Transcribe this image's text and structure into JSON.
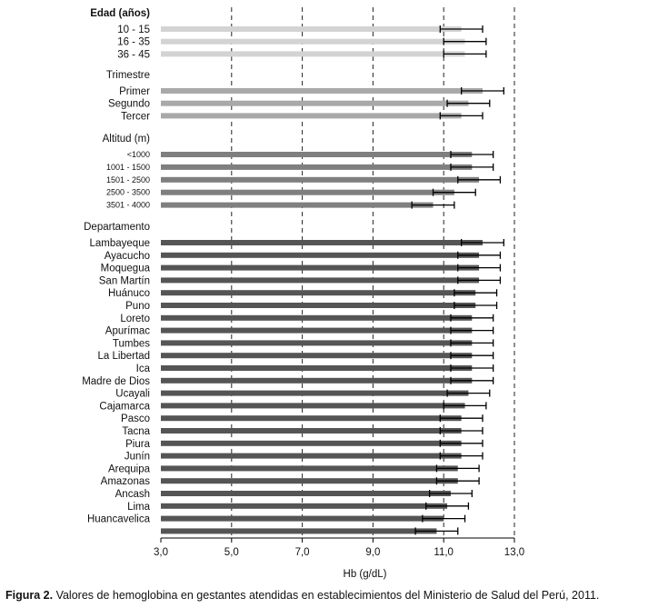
{
  "chart_data": {
    "type": "bar",
    "orientation": "horizontal",
    "xlabel": "Hb (g/dL)",
    "xlim": [
      3.0,
      13.0
    ],
    "xticks": [
      "3,0",
      "5,0",
      "7,0",
      "9,0",
      "11,0",
      "13,0"
    ],
    "gridlines": [
      5.0,
      7.0,
      9.0,
      11.0,
      13.0
    ],
    "grid": "vertical dashed",
    "groups": [
      {
        "header": "Edad (años)",
        "header_bold": true,
        "color": "#d3d3d3",
        "items": [
          {
            "label": "10 - 15",
            "value": 11.5,
            "low": 10.9,
            "high": 12.1
          },
          {
            "label": "16 - 35",
            "value": 11.6,
            "low": 11.0,
            "high": 12.2
          },
          {
            "label": "36 - 45",
            "value": 11.6,
            "low": 11.0,
            "high": 12.2
          }
        ]
      },
      {
        "header": "Trimestre",
        "header_bold": false,
        "color": "#a9a9a9",
        "items": [
          {
            "label": "Primer",
            "value": 12.1,
            "low": 11.5,
            "high": 12.7
          },
          {
            "label": "Segundo",
            "value": 11.7,
            "low": 11.1,
            "high": 12.3
          },
          {
            "label": "Tercer",
            "value": 11.5,
            "low": 10.9,
            "high": 12.1
          }
        ]
      },
      {
        "header": "Altitud (m)",
        "header_bold": false,
        "color": "#7f7f7f",
        "items": [
          {
            "label": "<1000",
            "value": 11.8,
            "low": 11.2,
            "high": 12.4
          },
          {
            "label": "1001 - 1500",
            "value": 11.8,
            "low": 11.2,
            "high": 12.4
          },
          {
            "label": "1501 - 2500",
            "value": 12.0,
            "low": 11.4,
            "high": 12.6
          },
          {
            "label": "2500 - 3500",
            "value": 11.3,
            "low": 10.7,
            "high": 11.9
          },
          {
            "label": "3501 - 4000",
            "value": 10.7,
            "low": 10.1,
            "high": 11.3
          }
        ]
      },
      {
        "header": "Departamento",
        "header_bold": false,
        "color": "#555555",
        "items": [
          {
            "label": "Lambayeque",
            "value": 12.1,
            "low": 11.5,
            "high": 12.7
          },
          {
            "label": "Ayacucho",
            "value": 12.0,
            "low": 11.4,
            "high": 12.6
          },
          {
            "label": "Moquegua",
            "value": 12.0,
            "low": 11.4,
            "high": 12.6
          },
          {
            "label": "San Martín",
            "value": 12.0,
            "low": 11.4,
            "high": 12.6
          },
          {
            "label": "Huánuco",
            "value": 11.9,
            "low": 11.3,
            "high": 12.5
          },
          {
            "label": "Puno",
            "value": 11.9,
            "low": 11.3,
            "high": 12.5
          },
          {
            "label": "Loreto",
            "value": 11.8,
            "low": 11.2,
            "high": 12.4
          },
          {
            "label": "Apurímac",
            "value": 11.8,
            "low": 11.2,
            "high": 12.4
          },
          {
            "label": "Tumbes",
            "value": 11.8,
            "low": 11.2,
            "high": 12.4
          },
          {
            "label": "La Libertad",
            "value": 11.8,
            "low": 11.2,
            "high": 12.4
          },
          {
            "label": "Ica",
            "value": 11.8,
            "low": 11.2,
            "high": 12.4
          },
          {
            "label": "Madre de Dios",
            "value": 11.8,
            "low": 11.2,
            "high": 12.4
          },
          {
            "label": "Ucayali",
            "value": 11.7,
            "low": 11.1,
            "high": 12.3
          },
          {
            "label": "Cajamarca",
            "value": 11.6,
            "low": 11.0,
            "high": 12.2
          },
          {
            "label": "Pasco",
            "value": 11.5,
            "low": 10.9,
            "high": 12.1
          },
          {
            "label": "Tacna",
            "value": 11.5,
            "low": 10.9,
            "high": 12.1
          },
          {
            "label": "Piura",
            "value": 11.5,
            "low": 10.9,
            "high": 12.1
          },
          {
            "label": "Junín",
            "value": 11.5,
            "low": 10.9,
            "high": 12.1
          },
          {
            "label": "Arequipa",
            "value": 11.4,
            "low": 10.8,
            "high": 12.0
          },
          {
            "label": "Amazonas",
            "value": 11.4,
            "low": 10.8,
            "high": 12.0
          },
          {
            "label": "Ancash",
            "value": 11.2,
            "low": 10.6,
            "high": 11.8
          },
          {
            "label": "Lima",
            "value": 11.1,
            "low": 10.5,
            "high": 11.7
          },
          {
            "label": "Huancavelica",
            "value": 11.0,
            "low": 10.4,
            "high": 11.6
          },
          {
            "label": "",
            "value": 10.8,
            "low": 10.2,
            "high": 11.4
          }
        ]
      }
    ]
  },
  "caption": {
    "prefix": "Figura 2.",
    "text": " Valores de hemoglobina en gestantes atendidas en establecimientos del Ministerio de Salud del Perú, 2011."
  }
}
